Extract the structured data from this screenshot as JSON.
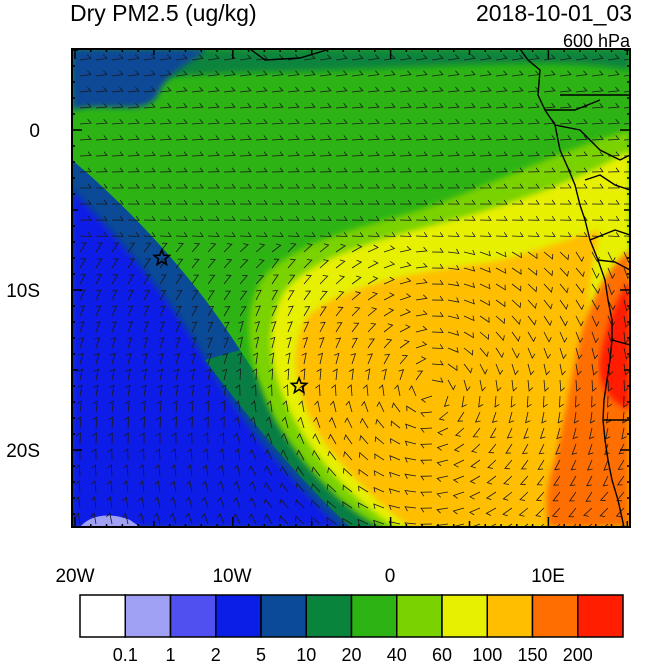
{
  "title": "Dry PM2.5 (ug/kg)",
  "datetime": "2018-10-01_03",
  "level": "600 hPa",
  "lon_labels": [
    "20W",
    "10W",
    "0",
    "10E"
  ],
  "lat_labels": [
    "0",
    "10S",
    "20S"
  ],
  "colorbar": {
    "labels": [
      "0.1",
      "1",
      "2",
      "5",
      "10",
      "20",
      "40",
      "60",
      "100",
      "150",
      "200"
    ],
    "colors": [
      "#ffffff",
      "#a0a0f5",
      "#5050f0",
      "#0a1ee6",
      "#0a4a96",
      "#08843c",
      "#2db414",
      "#7ad200",
      "#e6f000",
      "#ffbe00",
      "#ff6e00",
      "#ff1e00"
    ]
  },
  "colors": {
    "land_outline": "#000000",
    "wind_barb": "#1a1a1a"
  },
  "markers": [
    {
      "name": "star",
      "lon": -14.5,
      "lat": -8.0
    },
    {
      "name": "star",
      "lon": -5.8,
      "lat": -16.0
    }
  ],
  "icons": [
    "star-icon",
    "wind-barb-icon"
  ]
}
